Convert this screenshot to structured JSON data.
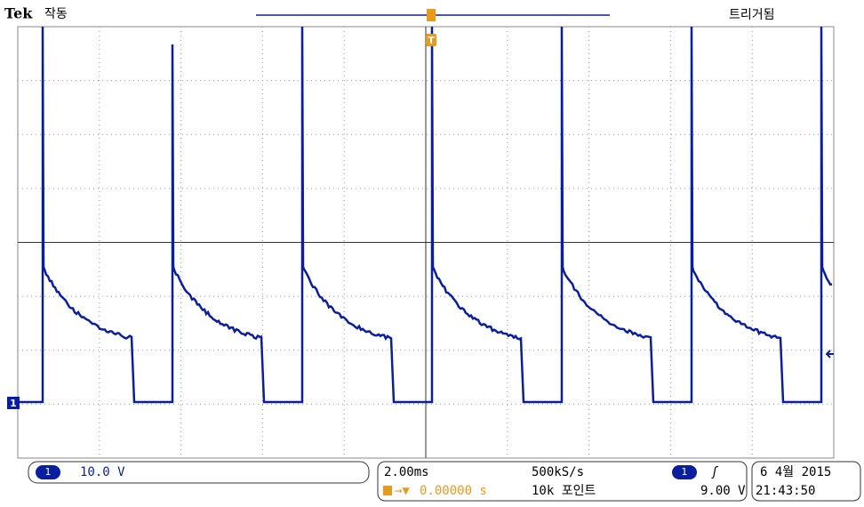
{
  "header": {
    "brand": "Tek",
    "state": "작동",
    "trigger_status": "트리거됨",
    "trigger_marker": "T"
  },
  "channel": {
    "number": "1",
    "scale": "10.0 V"
  },
  "timebase": {
    "scale": "2.00ms",
    "sample_rate": "500kS/s",
    "record_length": "10k 포인트",
    "trigger_position": "0.00000 s"
  },
  "trigger": {
    "channel": "1",
    "edge": "ʃ",
    "level": "9.00 V"
  },
  "timestamp": {
    "date": "6 4월 2015",
    "time": "21:43:50"
  }
}
